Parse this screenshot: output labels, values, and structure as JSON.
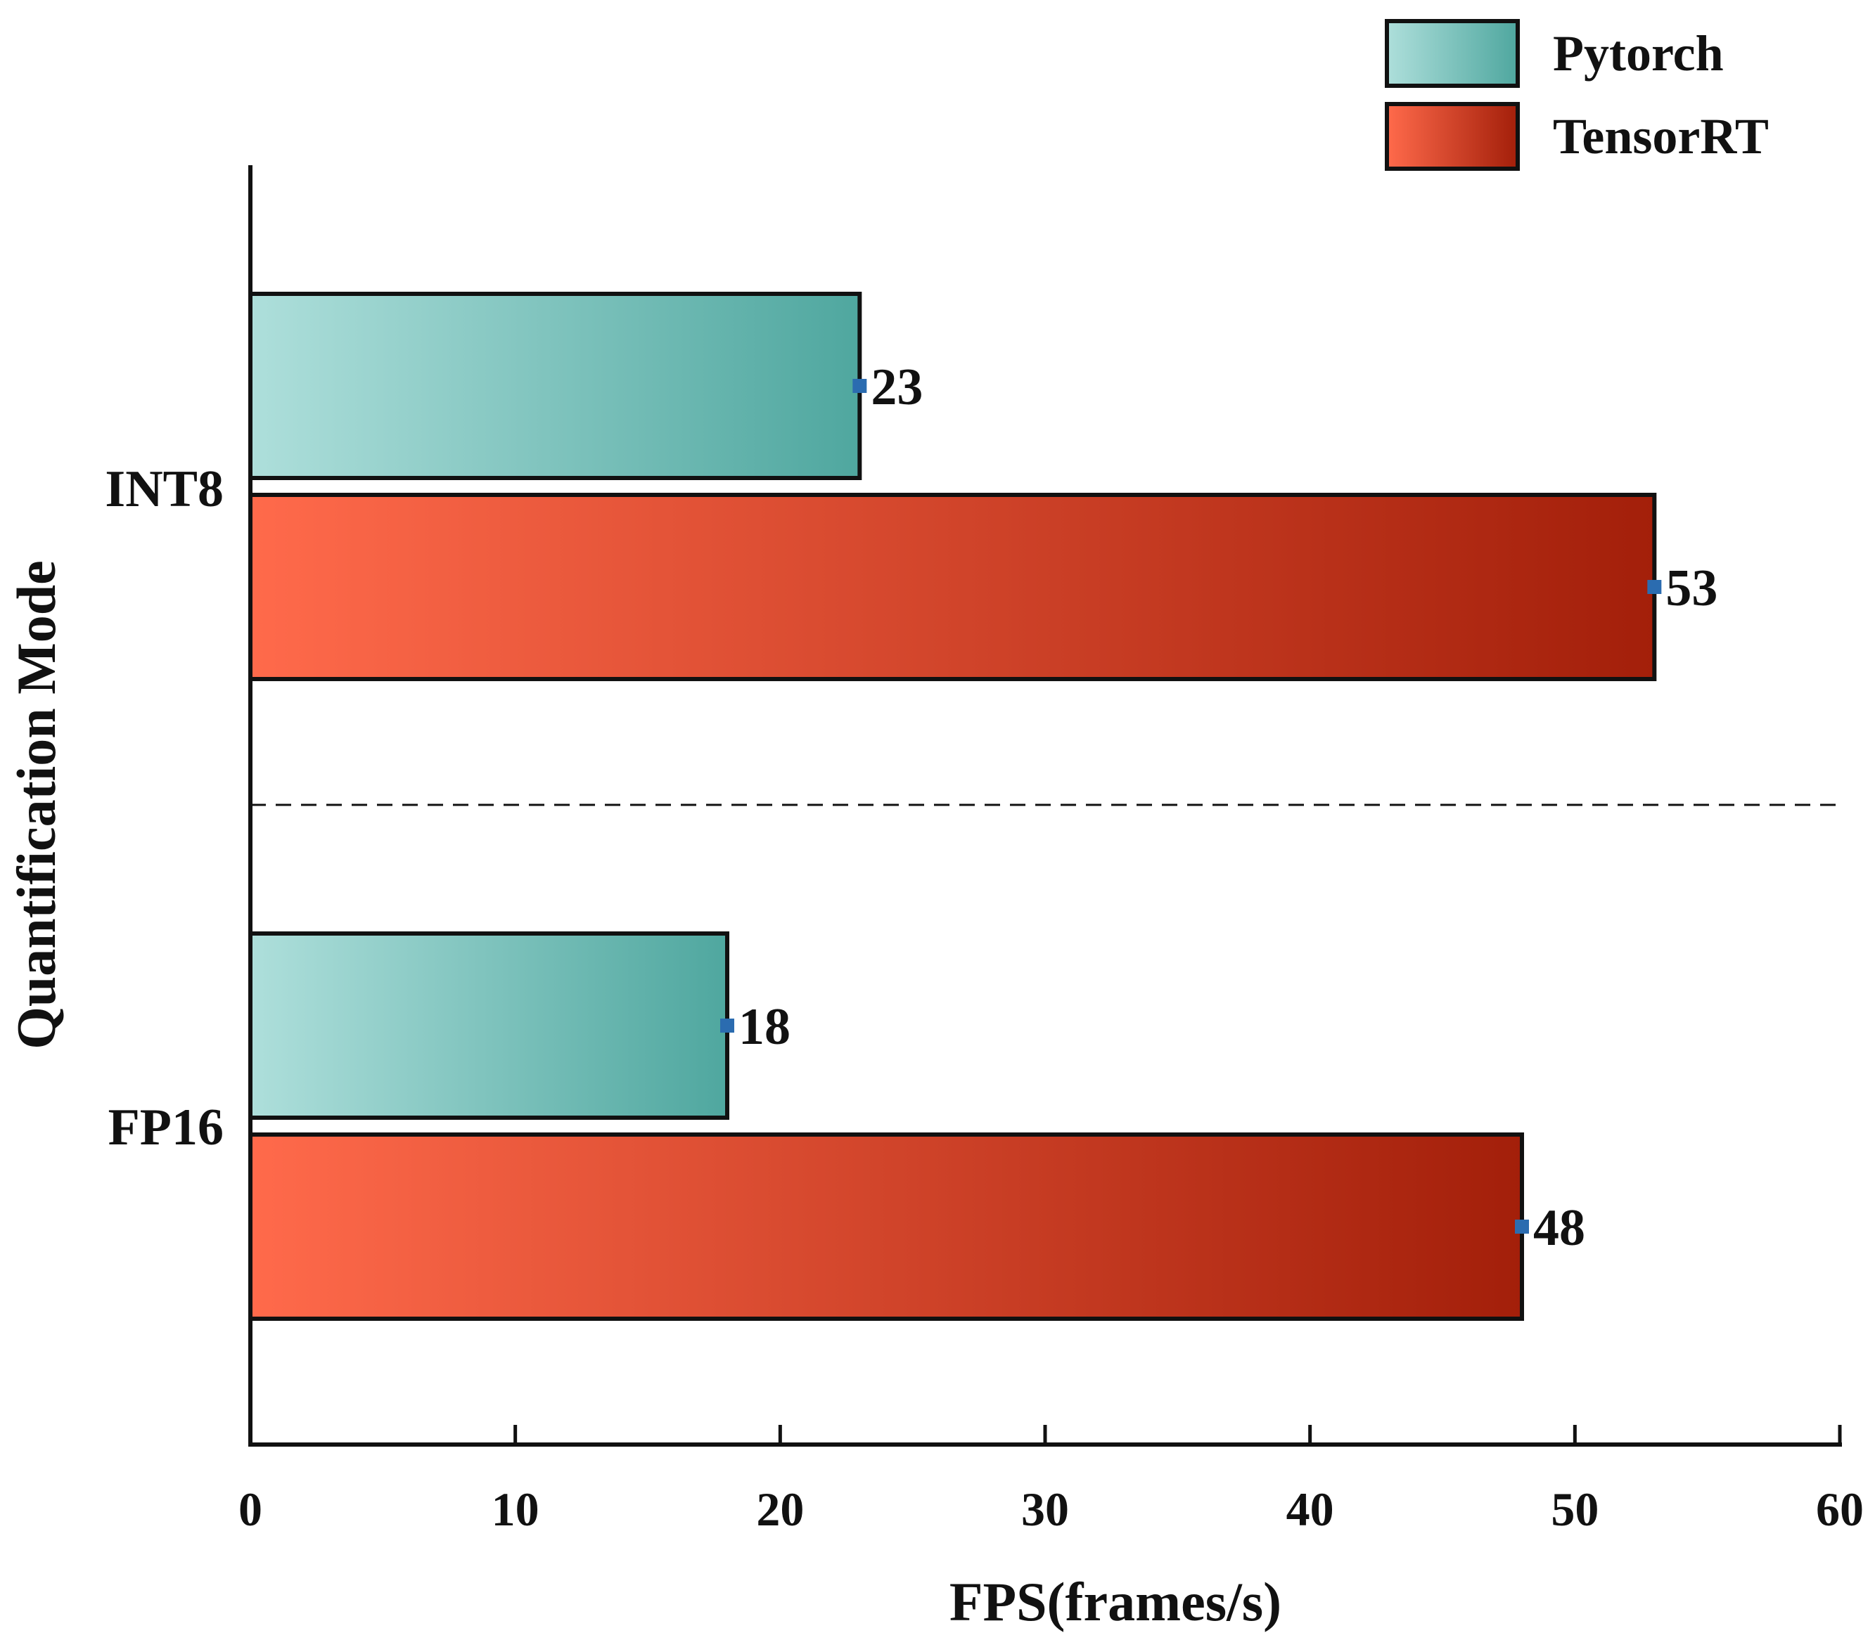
{
  "chart_data": {
    "type": "bar",
    "orientation": "horizontal",
    "title": "",
    "xlabel": "FPS(frames/s)",
    "ylabel": "Quantification Mode",
    "categories": [
      "INT8",
      "FP16"
    ],
    "series": [
      {
        "name": "Pytorch",
        "values": [
          23,
          18
        ],
        "color_start": "#aedfdb",
        "color_end": "#4fa79f"
      },
      {
        "name": "TensorRT",
        "values": [
          53,
          48
        ],
        "color_start": "#ff6a4b",
        "color_end": "#a31f0a"
      }
    ],
    "data_labels": [
      [
        "23",
        "18"
      ],
      [
        "53",
        "48"
      ]
    ],
    "xlim": [
      0,
      60
    ],
    "xticks": [
      0,
      10,
      20,
      30,
      40,
      50,
      60
    ],
    "xtick_labels": [
      "0",
      "10",
      "20",
      "30",
      "40",
      "50",
      "60"
    ],
    "grid": false,
    "category_separator": "dashed",
    "legend_position": "top-right",
    "marker_color": "#2b6cb0"
  }
}
